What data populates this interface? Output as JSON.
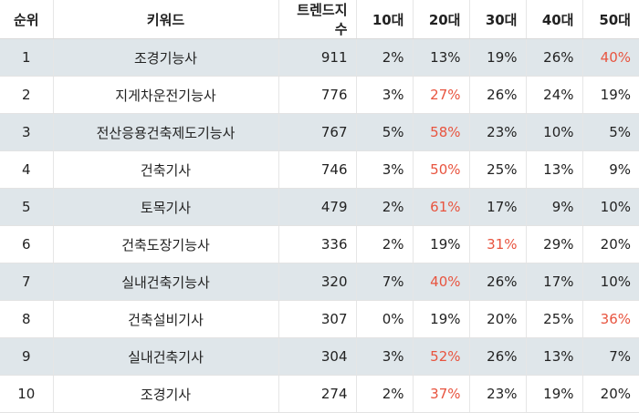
{
  "headers": {
    "rank": "순위",
    "keyword": "키워드",
    "trend": "트렌드지수",
    "age10": "10대",
    "age20": "20대",
    "age30": "30대",
    "age40": "40대",
    "age50": "50대"
  },
  "colors": {
    "highlight": "#e8543f",
    "stripe": "#dfe6ea"
  },
  "rows": [
    {
      "rank": "1",
      "keyword": "조경기능사",
      "trend": "911",
      "age10": "2%",
      "age20": "13%",
      "age30": "19%",
      "age40": "26%",
      "age50": "40%",
      "max": "age50"
    },
    {
      "rank": "2",
      "keyword": "지게차운전기능사",
      "trend": "776",
      "age10": "3%",
      "age20": "27%",
      "age30": "26%",
      "age40": "24%",
      "age50": "19%",
      "max": "age20"
    },
    {
      "rank": "3",
      "keyword": "전산응용건축제도기능사",
      "trend": "767",
      "age10": "5%",
      "age20": "58%",
      "age30": "23%",
      "age40": "10%",
      "age50": "5%",
      "max": "age20"
    },
    {
      "rank": "4",
      "keyword": "건축기사",
      "trend": "746",
      "age10": "3%",
      "age20": "50%",
      "age30": "25%",
      "age40": "13%",
      "age50": "9%",
      "max": "age20"
    },
    {
      "rank": "5",
      "keyword": "토목기사",
      "trend": "479",
      "age10": "2%",
      "age20": "61%",
      "age30": "17%",
      "age40": "9%",
      "age50": "10%",
      "max": "age20"
    },
    {
      "rank": "6",
      "keyword": "건축도장기능사",
      "trend": "336",
      "age10": "2%",
      "age20": "19%",
      "age30": "31%",
      "age40": "29%",
      "age50": "20%",
      "max": "age30"
    },
    {
      "rank": "7",
      "keyword": "실내건축기능사",
      "trend": "320",
      "age10": "7%",
      "age20": "40%",
      "age30": "26%",
      "age40": "17%",
      "age50": "10%",
      "max": "age20"
    },
    {
      "rank": "8",
      "keyword": "건축설비기사",
      "trend": "307",
      "age10": "0%",
      "age20": "19%",
      "age30": "20%",
      "age40": "25%",
      "age50": "36%",
      "max": "age50"
    },
    {
      "rank": "9",
      "keyword": "실내건축기사",
      "trend": "304",
      "age10": "3%",
      "age20": "52%",
      "age30": "26%",
      "age40": "13%",
      "age50": "7%",
      "max": "age20"
    },
    {
      "rank": "10",
      "keyword": "조경기사",
      "trend": "274",
      "age10": "2%",
      "age20": "37%",
      "age30": "23%",
      "age40": "19%",
      "age50": "20%",
      "max": "age20"
    }
  ]
}
